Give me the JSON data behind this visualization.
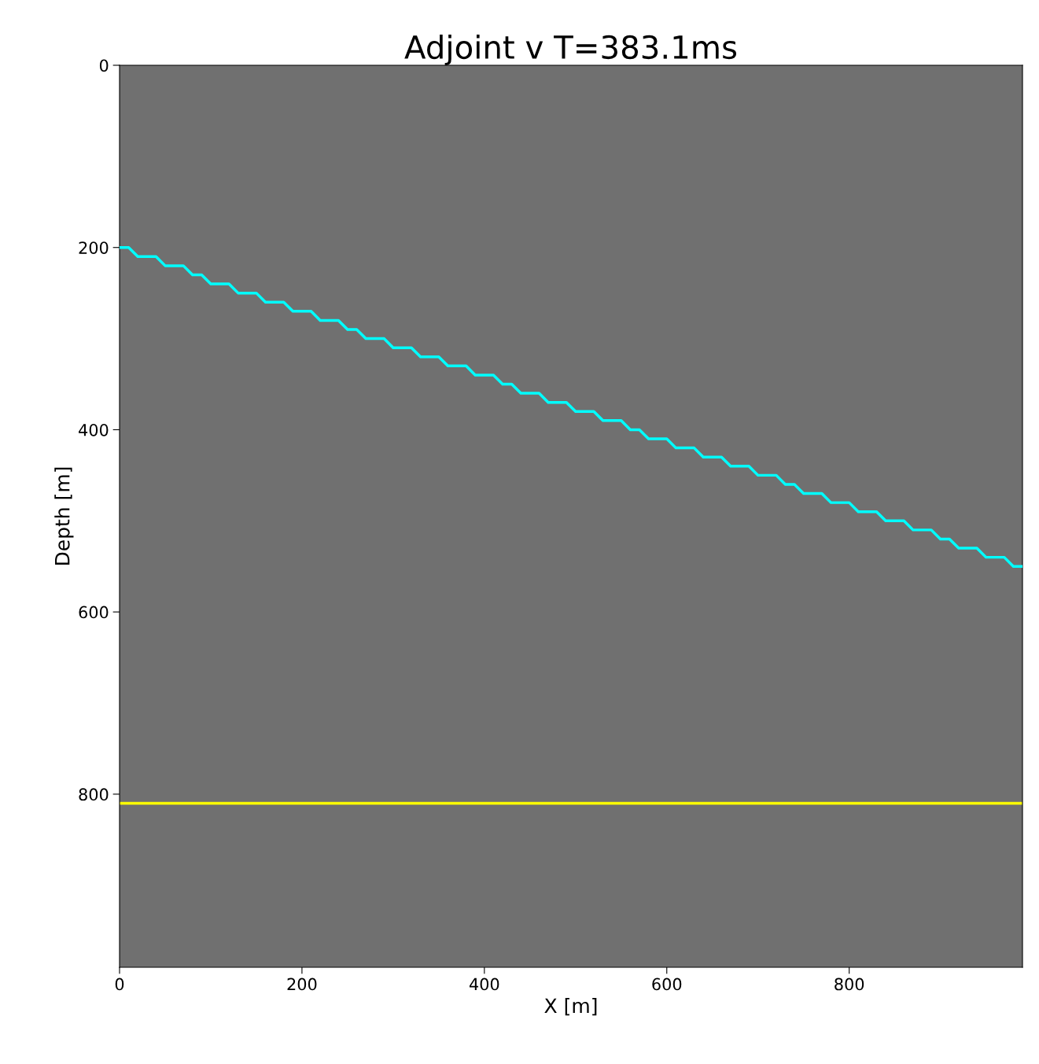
{
  "chart_data": {
    "type": "line",
    "title": "Adjoint v T=383.1ms",
    "xlabel": "X [m]",
    "ylabel": "Depth [m]",
    "xlim": [
      0,
      990
    ],
    "ylim": [
      990,
      0
    ],
    "xticks": [
      0,
      200,
      400,
      600,
      800
    ],
    "yticks": [
      0,
      200,
      400,
      600,
      800
    ],
    "grid": false,
    "legend": false,
    "line_style": "solid",
    "marker": "none",
    "series": [
      {
        "color": "#00ffff",
        "x": [
          0,
          10,
          20,
          40,
          50,
          70,
          80,
          90,
          100,
          120,
          130,
          150,
          160,
          180,
          190,
          210,
          220,
          240,
          250,
          260,
          270,
          290,
          300,
          320,
          330,
          350,
          360,
          380,
          390,
          410,
          420,
          430,
          440,
          460,
          470,
          490,
          500,
          520,
          530,
          550,
          560,
          570,
          580,
          600,
          610,
          630,
          640,
          660,
          670,
          690,
          700,
          720,
          730,
          740,
          750,
          770,
          780,
          800,
          810,
          830,
          840,
          860,
          870,
          890,
          900,
          910,
          920,
          940,
          950,
          970,
          980,
          990
        ],
        "values": [
          200,
          200,
          210,
          210,
          220,
          220,
          230,
          230,
          240,
          240,
          250,
          250,
          260,
          260,
          270,
          270,
          280,
          280,
          290,
          290,
          300,
          300,
          310,
          310,
          320,
          320,
          330,
          330,
          340,
          340,
          350,
          350,
          360,
          360,
          370,
          370,
          380,
          380,
          390,
          390,
          400,
          400,
          410,
          410,
          420,
          420,
          430,
          430,
          440,
          440,
          450,
          450,
          460,
          460,
          470,
          470,
          480,
          480,
          490,
          490,
          500,
          500,
          510,
          510,
          520,
          520,
          530,
          530,
          540,
          540,
          550,
          550
        ]
      }
    ],
    "ref_lines": [
      {
        "axis": "y",
        "value": 810,
        "color": "#ffff00",
        "line_style": "solid"
      }
    ]
  }
}
